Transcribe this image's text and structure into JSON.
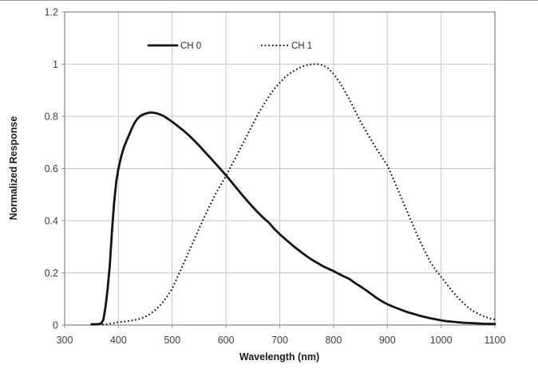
{
  "chart_data": {
    "type": "line",
    "title": "",
    "xlabel": "Wavelength (nm)",
    "ylabel": "Normalized Response",
    "xlim": [
      300,
      1100
    ],
    "ylim": [
      0,
      1.2
    ],
    "grid": true,
    "legend_position": "top-inside-horizontal",
    "x_ticks": [
      300,
      400,
      500,
      600,
      700,
      800,
      900,
      1000,
      1100
    ],
    "x_tick_labels": [
      "300",
      "400",
      "500",
      "600",
      "700",
      "800",
      "900",
      "1000",
      "1100"
    ],
    "y_ticks": [
      0,
      0.2,
      0.4,
      0.6,
      0.8,
      1.0,
      1.2
    ],
    "y_tick_labels": [
      "0",
      "0.2",
      "0.4",
      "0.6",
      "0.8",
      "1",
      "1.2"
    ],
    "colors": {
      "curve": "#141414",
      "gridline": "#c6c6c6",
      "plot_border": "#949494",
      "tick_label": "#3d3d3d",
      "axis_title": "#1a1a1a",
      "background": "#ffffff"
    },
    "series": [
      {
        "name": "CH 0",
        "style": "solid",
        "peak": {
          "x": 460,
          "y": 0.815
        },
        "points": [
          [
            350,
            0.003
          ],
          [
            360,
            0.003
          ],
          [
            368,
            0.006
          ],
          [
            372,
            0.02
          ],
          [
            376,
            0.07
          ],
          [
            380,
            0.14
          ],
          [
            384,
            0.23
          ],
          [
            388,
            0.36
          ],
          [
            392,
            0.47
          ],
          [
            396,
            0.55
          ],
          [
            400,
            0.6
          ],
          [
            405,
            0.645
          ],
          [
            410,
            0.68
          ],
          [
            415,
            0.706
          ],
          [
            420,
            0.73
          ],
          [
            425,
            0.754
          ],
          [
            430,
            0.775
          ],
          [
            435,
            0.79
          ],
          [
            440,
            0.8
          ],
          [
            445,
            0.806
          ],
          [
            450,
            0.81
          ],
          [
            455,
            0.813
          ],
          [
            460,
            0.815
          ],
          [
            465,
            0.814
          ],
          [
            470,
            0.812
          ],
          [
            475,
            0.809
          ],
          [
            480,
            0.805
          ],
          [
            485,
            0.8
          ],
          [
            490,
            0.793
          ],
          [
            495,
            0.786
          ],
          [
            500,
            0.779
          ],
          [
            510,
            0.763
          ],
          [
            520,
            0.747
          ],
          [
            530,
            0.729
          ],
          [
            540,
            0.709
          ],
          [
            550,
            0.688
          ],
          [
            560,
            0.665
          ],
          [
            570,
            0.643
          ],
          [
            580,
            0.62
          ],
          [
            590,
            0.597
          ],
          [
            600,
            0.574
          ],
          [
            610,
            0.549
          ],
          [
            620,
            0.524
          ],
          [
            630,
            0.499
          ],
          [
            640,
            0.475
          ],
          [
            650,
            0.452
          ],
          [
            660,
            0.43
          ],
          [
            670,
            0.41
          ],
          [
            680,
            0.392
          ],
          [
            690,
            0.368
          ],
          [
            700,
            0.348
          ],
          [
            710,
            0.33
          ],
          [
            720,
            0.312
          ],
          [
            730,
            0.295
          ],
          [
            740,
            0.279
          ],
          [
            750,
            0.264
          ],
          [
            760,
            0.25
          ],
          [
            770,
            0.238
          ],
          [
            780,
            0.226
          ],
          [
            790,
            0.216
          ],
          [
            800,
            0.207
          ],
          [
            810,
            0.196
          ],
          [
            820,
            0.186
          ],
          [
            830,
            0.176
          ],
          [
            840,
            0.161
          ],
          [
            850,
            0.148
          ],
          [
            860,
            0.134
          ],
          [
            870,
            0.119
          ],
          [
            880,
            0.104
          ],
          [
            890,
            0.091
          ],
          [
            900,
            0.08
          ],
          [
            910,
            0.071
          ],
          [
            920,
            0.063
          ],
          [
            930,
            0.055
          ],
          [
            940,
            0.048
          ],
          [
            950,
            0.042
          ],
          [
            960,
            0.036
          ],
          [
            970,
            0.031
          ],
          [
            980,
            0.026
          ],
          [
            990,
            0.022
          ],
          [
            1000,
            0.018
          ],
          [
            1010,
            0.015
          ],
          [
            1020,
            0.013
          ],
          [
            1030,
            0.011
          ],
          [
            1040,
            0.009
          ],
          [
            1050,
            0.008
          ],
          [
            1060,
            0.007
          ],
          [
            1070,
            0.006
          ],
          [
            1080,
            0.005
          ],
          [
            1090,
            0.0045
          ],
          [
            1100,
            0.004
          ]
        ]
      },
      {
        "name": "CH 1",
        "style": "dotted",
        "peak": {
          "x": 765,
          "y": 1.0
        },
        "points": [
          [
            370,
            0.002
          ],
          [
            380,
            0.004
          ],
          [
            390,
            0.007
          ],
          [
            400,
            0.011
          ],
          [
            410,
            0.013
          ],
          [
            420,
            0.016
          ],
          [
            430,
            0.019
          ],
          [
            440,
            0.024
          ],
          [
            450,
            0.032
          ],
          [
            460,
            0.044
          ],
          [
            470,
            0.06
          ],
          [
            480,
            0.081
          ],
          [
            490,
            0.108
          ],
          [
            500,
            0.14
          ],
          [
            510,
            0.185
          ],
          [
            520,
            0.23
          ],
          [
            530,
            0.277
          ],
          [
            540,
            0.323
          ],
          [
            550,
            0.37
          ],
          [
            560,
            0.415
          ],
          [
            570,
            0.458
          ],
          [
            580,
            0.5
          ],
          [
            590,
            0.536
          ],
          [
            600,
            0.572
          ],
          [
            610,
            0.611
          ],
          [
            620,
            0.65
          ],
          [
            630,
            0.69
          ],
          [
            640,
            0.73
          ],
          [
            650,
            0.77
          ],
          [
            660,
            0.81
          ],
          [
            670,
            0.845
          ],
          [
            680,
            0.877
          ],
          [
            690,
            0.905
          ],
          [
            700,
            0.929
          ],
          [
            710,
            0.95
          ],
          [
            720,
            0.966
          ],
          [
            730,
            0.979
          ],
          [
            740,
            0.989
          ],
          [
            750,
            0.996
          ],
          [
            760,
            1.0
          ],
          [
            770,
            1.0
          ],
          [
            780,
            0.996
          ],
          [
            790,
            0.984
          ],
          [
            800,
            0.962
          ],
          [
            810,
            0.935
          ],
          [
            820,
            0.9
          ],
          [
            830,
            0.863
          ],
          [
            840,
            0.822
          ],
          [
            850,
            0.78
          ],
          [
            860,
            0.744
          ],
          [
            870,
            0.709
          ],
          [
            880,
            0.675
          ],
          [
            890,
            0.643
          ],
          [
            900,
            0.612
          ],
          [
            910,
            0.565
          ],
          [
            920,
            0.517
          ],
          [
            930,
            0.468
          ],
          [
            940,
            0.42
          ],
          [
            950,
            0.372
          ],
          [
            960,
            0.325
          ],
          [
            970,
            0.282
          ],
          [
            980,
            0.242
          ],
          [
            990,
            0.21
          ],
          [
            1000,
            0.185
          ],
          [
            1010,
            0.158
          ],
          [
            1020,
            0.132
          ],
          [
            1030,
            0.108
          ],
          [
            1040,
            0.087
          ],
          [
            1050,
            0.068
          ],
          [
            1060,
            0.053
          ],
          [
            1070,
            0.042
          ],
          [
            1080,
            0.033
          ],
          [
            1090,
            0.026
          ],
          [
            1100,
            0.021
          ]
        ]
      }
    ]
  }
}
